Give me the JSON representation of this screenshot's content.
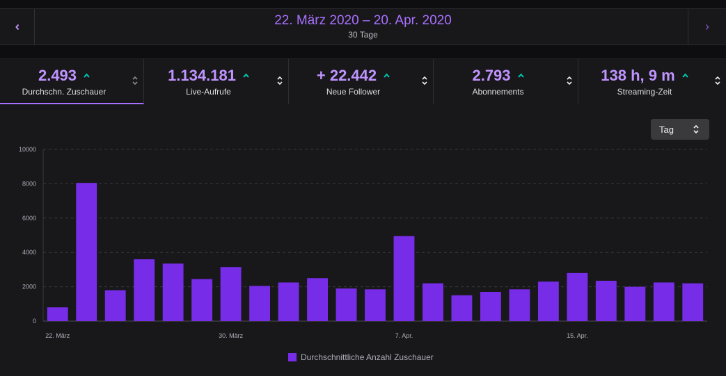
{
  "date_range": {
    "title": "22. März 2020 – 20. Apr. 2020",
    "subtitle": "30 Tage",
    "prev_icon": "chevron-left-icon",
    "next_icon": "chevron-right-icon"
  },
  "stats": [
    {
      "value": "2.493",
      "label": "Durchschn. Zuschauer",
      "trend": "up",
      "active": true
    },
    {
      "value": "1.134.181",
      "label": "Live-Aufrufe",
      "trend": "up",
      "active": false
    },
    {
      "value": "+ 22.442",
      "label": "Neue Follower",
      "trend": "up",
      "active": false
    },
    {
      "value": "2.793",
      "label": "Abonnements",
      "trend": "up",
      "active": false
    },
    {
      "value": "138 h, 9 m",
      "label": "Streaming-Zeit",
      "trend": "up",
      "active": false
    }
  ],
  "granularity": {
    "selected": "Tag",
    "icon": "sort-arrows-icon"
  },
  "colors": {
    "accent": "#a970ff",
    "bar": "#772ce8",
    "trend_up": "#00c7ac"
  },
  "chart_data": {
    "type": "bar",
    "series": [
      {
        "name": "Durchschnittliche Anzahl Zuschauer",
        "values": [
          800,
          8050,
          1800,
          3600,
          3350,
          2450,
          3150,
          2050,
          2250,
          2500,
          1900,
          1850,
          4950,
          2200,
          1500,
          1700,
          1850,
          2300,
          2800,
          2350,
          2000,
          2250,
          2200
        ]
      }
    ],
    "x_tick_labels": [
      {
        "index": 0,
        "label": "22. März"
      },
      {
        "index": 6,
        "label": "30. März"
      },
      {
        "index": 12,
        "label": "7. Apr."
      },
      {
        "index": 18,
        "label": "15. Apr."
      }
    ],
    "y_ticks": [
      "0",
      "2000",
      "4000",
      "6000",
      "8000",
      "10000"
    ],
    "ylim": [
      0,
      10000
    ],
    "grid": true,
    "legend": "bottom"
  }
}
